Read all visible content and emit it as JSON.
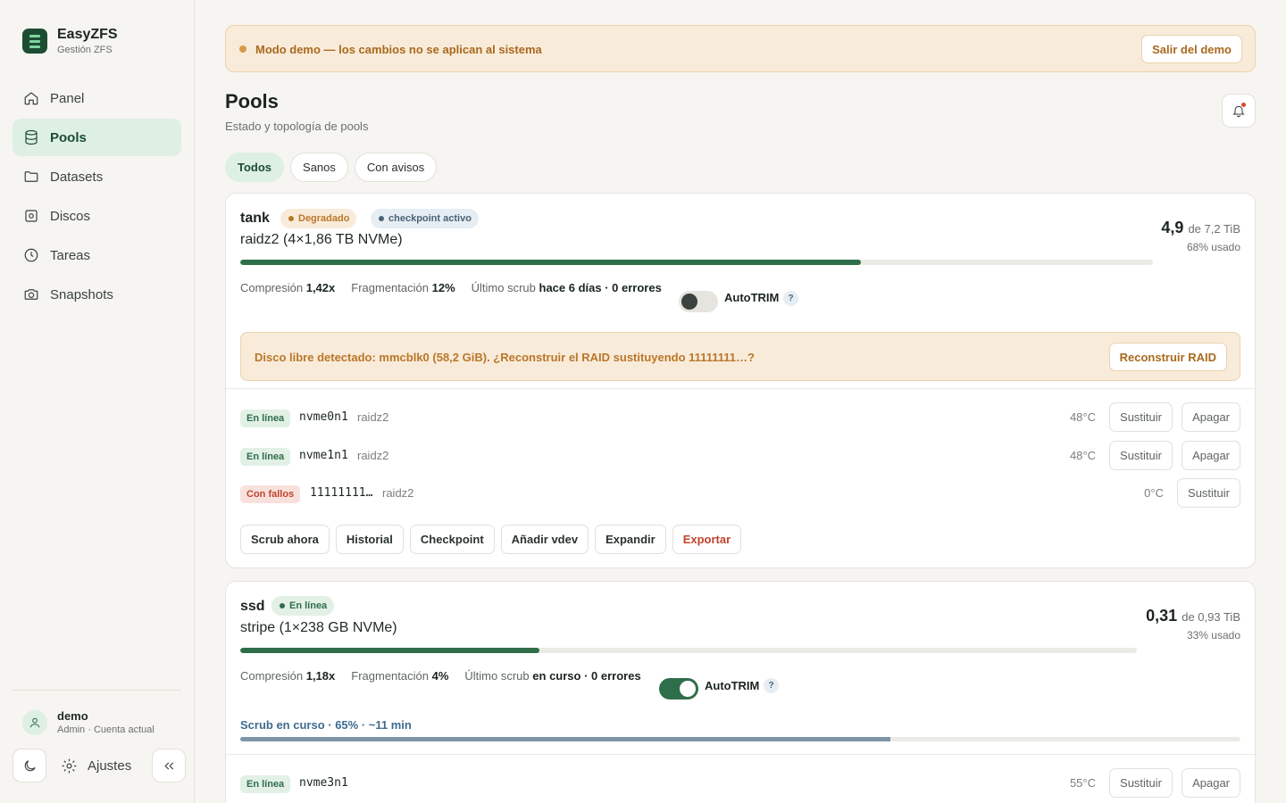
{
  "app": {
    "name": "EasyZFS",
    "subtitle": "Gestión ZFS"
  },
  "nav": [
    {
      "label": "Panel",
      "icon": "home-icon",
      "active": false
    },
    {
      "label": "Pools",
      "icon": "database-icon",
      "active": true
    },
    {
      "label": "Datasets",
      "icon": "folder-icon",
      "active": false
    },
    {
      "label": "Discos",
      "icon": "disk-icon",
      "active": false
    },
    {
      "label": "Tareas",
      "icon": "clock-icon",
      "active": false
    },
    {
      "label": "Snapshots",
      "icon": "camera-icon",
      "active": false
    }
  ],
  "user": {
    "name": "demo",
    "role": "Admin · Cuenta actual"
  },
  "sidebar_footer": {
    "settings_label": "Ajustes"
  },
  "banner": {
    "text": "Modo demo — los cambios no se aplican al sistema",
    "button": "Salir del demo"
  },
  "page": {
    "title": "Pools",
    "subtitle": "Estado y topología de pools"
  },
  "filters": [
    "Todos",
    "Sanos",
    "Con avisos"
  ],
  "labels": {
    "compression": "Compresión",
    "fragmentation": "Fragmentación",
    "last_scrub": "Último scrub",
    "autotrim": "AutoTRIM",
    "help": "?"
  },
  "pools": [
    {
      "name": "tank",
      "status": "Degradado",
      "extra_badge": "checkpoint activo",
      "topology": "raidz2 (4×1,86 TB NVMe)",
      "used": "4,9",
      "total": "de 7,2 TiB",
      "used_pct_label": "68% usado",
      "used_fraction": 0.68,
      "compression": "1,42x",
      "fragmentation": "12%",
      "last_scrub": "hace 6 días · 0 errores",
      "autotrim": false,
      "alert": {
        "text": "Disco libre detectado: mmcblk0 (58,2 GiB). ¿Reconstruir el RAID sustituyendo 11111111…?",
        "button": "Reconstruir RAID"
      },
      "disks": [
        {
          "status": "En línea",
          "device": "nvme0n1",
          "vdev": "raidz2",
          "temp": "48°C",
          "buttons": [
            "Sustituir",
            "Apagar"
          ]
        },
        {
          "status": "En línea",
          "device": "nvme1n1",
          "vdev": "raidz2",
          "temp": "48°C",
          "buttons": [
            "Sustituir",
            "Apagar"
          ]
        },
        {
          "status": "Con fallos",
          "device": "11111111…",
          "vdev": "raidz2",
          "temp": "0°C",
          "buttons": [
            "Sustituir"
          ]
        }
      ],
      "actions": [
        "Scrub ahora",
        "Historial",
        "Checkpoint",
        "Añadir vdev",
        "Expandir",
        "Exportar"
      ]
    },
    {
      "name": "ssd",
      "status": "En línea",
      "topology": "stripe (1×238 GB NVMe)",
      "used": "0,31",
      "total": "de 0,93 TiB",
      "used_pct_label": "33% usado",
      "used_fraction": 0.334,
      "compression": "1,18x",
      "fragmentation": "4%",
      "last_scrub": "en curso · 0 errores",
      "autotrim": true,
      "scrub": {
        "text": "Scrub en curso · 65% · ~11 min",
        "progress": 0.65
      },
      "disks": [
        {
          "status": "En línea",
          "device": "nvme3n1",
          "vdev": "",
          "temp": "55°C",
          "buttons": [
            "Sustituir",
            "Apagar"
          ]
        }
      ]
    }
  ],
  "colors": {
    "brand": "#1c4d33",
    "accent_bg": "#deefe3",
    "warn": "#b9772a",
    "danger": "#c0442e"
  }
}
